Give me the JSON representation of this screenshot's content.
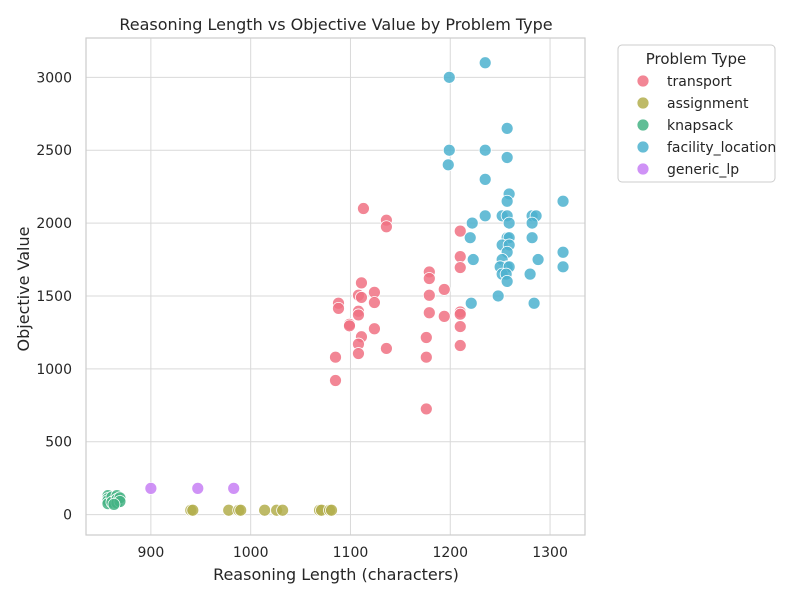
{
  "chart_data": {
    "type": "scatter",
    "title": "Reasoning Length vs Objective Value by Problem Type",
    "xlabel": "Reasoning Length (characters)",
    "ylabel": "Objective Value",
    "xlim": [
      835,
      1335
    ],
    "ylim": [
      -140,
      3270
    ],
    "xticks": [
      900,
      1000,
      1100,
      1200,
      1300
    ],
    "yticks": [
      0,
      500,
      1000,
      1500,
      2000,
      2500,
      3000
    ],
    "grid": true,
    "legend": {
      "title": "Problem Type",
      "placement": "outside-right-top"
    },
    "series": [
      {
        "name": "transport",
        "color": "#f07183",
        "points": [
          [
            1113,
            2100
          ],
          [
            1136,
            2020
          ],
          [
            1136,
            1975
          ],
          [
            1210,
            1945
          ],
          [
            1210,
            1770
          ],
          [
            1210,
            1695
          ],
          [
            1179,
            1665
          ],
          [
            1179,
            1620
          ],
          [
            1111,
            1590
          ],
          [
            1108,
            1505
          ],
          [
            1124,
            1525
          ],
          [
            1179,
            1505
          ],
          [
            1194,
            1545
          ],
          [
            1088,
            1450
          ],
          [
            1088,
            1415
          ],
          [
            1124,
            1455
          ],
          [
            1108,
            1395
          ],
          [
            1108,
            1370
          ],
          [
            1179,
            1385
          ],
          [
            1210,
            1390
          ],
          [
            1210,
            1375
          ],
          [
            1194,
            1360
          ],
          [
            1099,
            1305
          ],
          [
            1099,
            1295
          ],
          [
            1124,
            1275
          ],
          [
            1210,
            1290
          ],
          [
            1111,
            1220
          ],
          [
            1176,
            1215
          ],
          [
            1108,
            1170
          ],
          [
            1136,
            1140
          ],
          [
            1210,
            1160
          ],
          [
            1108,
            1105
          ],
          [
            1085,
            1080
          ],
          [
            1176,
            1080
          ],
          [
            1085,
            920
          ],
          [
            1176,
            725
          ],
          [
            1111,
            1490
          ]
        ]
      },
      {
        "name": "assignment",
        "color": "#b3ae4c",
        "points": [
          [
            940,
            30
          ],
          [
            942,
            30
          ],
          [
            978,
            30
          ],
          [
            988,
            30
          ],
          [
            990,
            30
          ],
          [
            1014,
            30
          ],
          [
            1026,
            30
          ],
          [
            1032,
            30
          ],
          [
            1069,
            30
          ],
          [
            1071,
            30
          ],
          [
            1079,
            30
          ],
          [
            1081,
            30
          ]
        ]
      },
      {
        "name": "knapsack",
        "color": "#44b384",
        "points": [
          [
            857,
            130
          ],
          [
            857,
            110
          ],
          [
            857,
            95
          ],
          [
            857,
            75
          ],
          [
            861,
            120
          ],
          [
            861,
            85
          ],
          [
            866,
            130
          ],
          [
            866,
            105
          ],
          [
            866,
            80
          ],
          [
            869,
            115
          ],
          [
            869,
            90
          ],
          [
            863,
            70
          ]
        ]
      },
      {
        "name": "facility_location",
        "color": "#4cb1cf",
        "points": [
          [
            1235,
            3100
          ],
          [
            1199,
            3000
          ],
          [
            1257,
            2650
          ],
          [
            1199,
            2500
          ],
          [
            1235,
            2500
          ],
          [
            1257,
            2450
          ],
          [
            1198,
            2400
          ],
          [
            1235,
            2300
          ],
          [
            1259,
            2200
          ],
          [
            1313,
            2150
          ],
          [
            1257,
            2150
          ],
          [
            1235,
            2050
          ],
          [
            1252,
            2050
          ],
          [
            1257,
            2050
          ],
          [
            1282,
            2050
          ],
          [
            1286,
            2050
          ],
          [
            1222,
            2000
          ],
          [
            1259,
            2000
          ],
          [
            1282,
            2000
          ],
          [
            1220,
            1900
          ],
          [
            1257,
            1900
          ],
          [
            1259,
            1900
          ],
          [
            1282,
            1900
          ],
          [
            1252,
            1850
          ],
          [
            1259,
            1850
          ],
          [
            1257,
            1800
          ],
          [
            1313,
            1800
          ],
          [
            1223,
            1750
          ],
          [
            1252,
            1750
          ],
          [
            1288,
            1750
          ],
          [
            1257,
            1700
          ],
          [
            1250,
            1700
          ],
          [
            1259,
            1700
          ],
          [
            1313,
            1700
          ],
          [
            1252,
            1650
          ],
          [
            1256,
            1650
          ],
          [
            1280,
            1650
          ],
          [
            1257,
            1600
          ],
          [
            1248,
            1500
          ],
          [
            1221,
            1450
          ],
          [
            1284,
            1450
          ]
        ]
      },
      {
        "name": "generic_lp",
        "color": "#c77ff5",
        "points": [
          [
            900,
            180
          ],
          [
            947,
            180
          ],
          [
            983,
            180
          ]
        ]
      }
    ]
  }
}
